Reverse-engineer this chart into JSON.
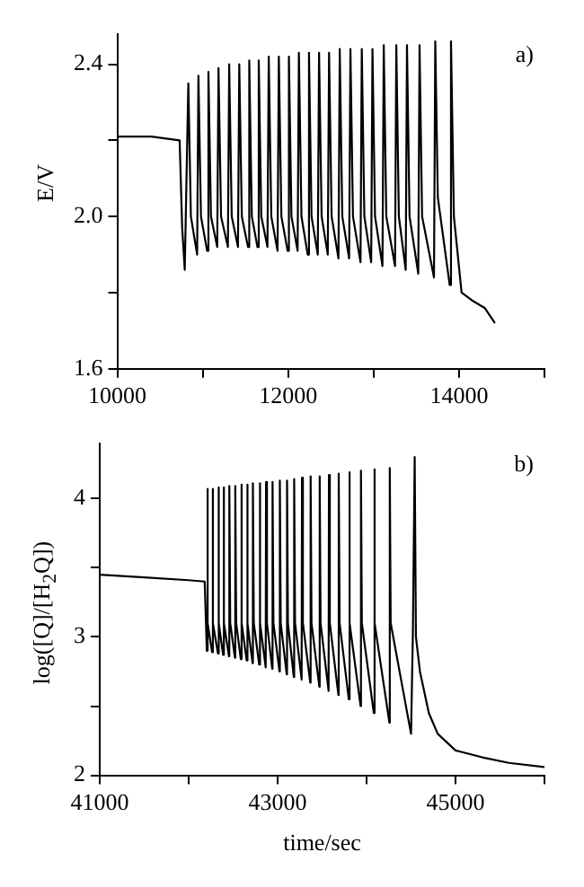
{
  "chart_data": [
    {
      "type": "line",
      "ylabel": "E/V",
      "annotations": [
        "a)"
      ],
      "grid": false,
      "marker": "none",
      "legend": false,
      "xlim": [
        10000,
        15000
      ],
      "xticks": [
        10000,
        {
          "value": 11000,
          "label": null
        },
        12000,
        {
          "value": 13000,
          "label": null
        },
        14000,
        {
          "value": 15000,
          "label": null
        }
      ],
      "ylim": [
        1.6,
        2.48
      ],
      "yticks": [
        1.6,
        {
          "value": 1.8,
          "label": null
        },
        {
          "value": 2.0,
          "label": "2.0"
        },
        {
          "value": 2.2,
          "label": null
        },
        2.4
      ],
      "series": [
        {
          "color": "#000000",
          "x": [
            10000,
            10400,
            10730,
            10760,
            10790,
            10832,
            10862,
            10935,
            10950,
            10980,
            11052,
            11067,
            11097,
            11170,
            11185,
            11215,
            11295,
            11310,
            11340,
            11413,
            11428,
            11458,
            11530,
            11545,
            11575,
            11641,
            11656,
            11686,
            11758,
            11773,
            11803,
            11876,
            11891,
            11921,
            11994,
            12009,
            12039,
            12111,
            12126,
            12156,
            12229,
            12244,
            12274,
            12347,
            12362,
            12392,
            12464,
            12479,
            12509,
            12589,
            12604,
            12634,
            12714,
            12729,
            12759,
            12847,
            12862,
            12892,
            12972,
            12987,
            13017,
            13104,
            13119,
            13149,
            13251,
            13266,
            13296,
            13376,
            13391,
            13421,
            13523,
            13538,
            13568,
            13707,
            13722,
            13752,
            13891,
            13906,
            13940,
            14030,
            14150,
            14300,
            14420
          ],
          "values": [
            2.21,
            2.21,
            2.2,
            1.97,
            1.86,
            2.35,
            2.0,
            1.9,
            2.37,
            2.0,
            1.91,
            2.38,
            2.0,
            1.92,
            2.39,
            2.0,
            1.92,
            2.4,
            2.0,
            1.92,
            2.4,
            2.0,
            1.92,
            2.41,
            2.0,
            1.92,
            2.41,
            2.0,
            1.92,
            2.42,
            2.0,
            1.91,
            2.42,
            2.0,
            1.91,
            2.42,
            2.0,
            1.91,
            2.43,
            2.0,
            1.9,
            2.43,
            2.0,
            1.9,
            2.43,
            2.0,
            1.9,
            2.43,
            2.0,
            1.89,
            2.44,
            2.0,
            1.89,
            2.44,
            2.0,
            1.88,
            2.44,
            2.0,
            1.88,
            2.44,
            2.0,
            1.87,
            2.45,
            2.0,
            1.87,
            2.45,
            2.0,
            1.86,
            2.45,
            2.0,
            1.85,
            2.45,
            2.0,
            1.84,
            2.46,
            2.05,
            1.82,
            2.46,
            2.0,
            1.8,
            1.78,
            1.76,
            1.72
          ]
        }
      ]
    },
    {
      "type": "line",
      "ylabel": "log([Q]/[H$_{2}$Q])",
      "xlabel": "time/sec",
      "annotations": [
        "b)"
      ],
      "grid": false,
      "marker": "none",
      "legend": false,
      "xlim": [
        41000,
        46000
      ],
      "xticks": [
        41000,
        {
          "value": 42000,
          "label": null
        },
        43000,
        {
          "value": 44000,
          "label": null
        },
        45000,
        {
          "value": 46000,
          "label": null
        }
      ],
      "ylim": [
        2,
        4.4
      ],
      "yticks": [
        2,
        {
          "value": 2.5,
          "label": null
        },
        3,
        {
          "value": 3.5,
          "label": null
        },
        4
      ],
      "series": [
        {
          "color": "#000000",
          "x": [
            41000,
            41500,
            42000,
            42180,
            42204,
            42208,
            42218,
            42263,
            42267,
            42277,
            42329,
            42333,
            42343,
            42387,
            42391,
            42401,
            42453,
            42457,
            42467,
            42520,
            42524,
            42534,
            42586,
            42590,
            42600,
            42652,
            42656,
            42666,
            42718,
            42722,
            42732,
            42793,
            42797,
            42807,
            42866,
            42870,
            42880,
            42939,
            42943,
            42953,
            43021,
            43025,
            43035,
            43102,
            43106,
            43116,
            43182,
            43186,
            43196,
            43270,
            43274,
            43284,
            43367,
            43371,
            43381,
            43469,
            43473,
            43483,
            43573,
            43577,
            43587,
            43683,
            43687,
            43697,
            43800,
            43804,
            43814,
            43933,
            43937,
            43947,
            44081,
            44085,
            44095,
            44257,
            44261,
            44271,
            44500,
            44520,
            44541,
            44555,
            44600,
            44700,
            44800,
            45000,
            45300,
            45600,
            46000
          ],
          "values": [
            3.45,
            3.43,
            3.41,
            3.4,
            2.9,
            4.07,
            3.1,
            2.89,
            4.07,
            3.1,
            2.88,
            4.08,
            3.1,
            2.87,
            4.08,
            3.1,
            2.86,
            4.09,
            3.1,
            2.85,
            4.09,
            3.1,
            2.84,
            4.1,
            3.1,
            2.83,
            4.1,
            3.1,
            2.81,
            4.11,
            3.1,
            2.8,
            4.11,
            3.1,
            2.78,
            4.12,
            3.1,
            2.77,
            4.12,
            3.1,
            2.75,
            4.13,
            3.1,
            2.73,
            4.13,
            3.1,
            2.71,
            4.14,
            3.1,
            2.69,
            4.15,
            3.1,
            2.67,
            4.16,
            3.1,
            2.64,
            4.16,
            3.1,
            2.61,
            4.17,
            3.1,
            2.58,
            4.18,
            3.1,
            2.55,
            4.19,
            3.1,
            2.5,
            4.2,
            3.1,
            2.45,
            4.21,
            3.1,
            2.38,
            4.22,
            3.1,
            2.3,
            3.0,
            4.3,
            3.0,
            2.75,
            2.45,
            2.3,
            2.18,
            2.13,
            2.09,
            2.06
          ]
        }
      ]
    }
  ]
}
